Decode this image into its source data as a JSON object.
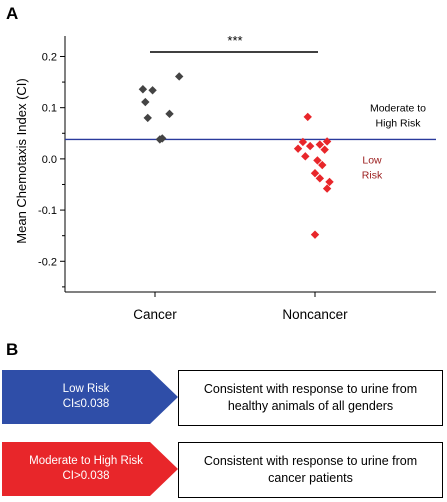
{
  "panel_a": {
    "letter": "A"
  },
  "panel_b": {
    "letter": "B",
    "rows": [
      {
        "arrow_line1": "Low Risk",
        "arrow_line2": "CI≤0.038",
        "arrow_color": "#2f4ea8",
        "desc_line1": "Consistent with response to urine from",
        "desc_line2": "healthy animals of all genders"
      },
      {
        "arrow_line1": "Moderate to High Risk",
        "arrow_line2": "CI>0.038",
        "arrow_color": "#e8262a",
        "desc_line1": "Consistent with response to urine from",
        "desc_line2": "cancer patients"
      }
    ]
  },
  "chart_data": {
    "type": "scatter",
    "ylabel": "Mean Chemotaxis Index (CI)",
    "xlabel": "",
    "categories": [
      "Cancer",
      "Noncancer"
    ],
    "ylim": [
      -0.26,
      0.24
    ],
    "yticks": [
      -0.2,
      -0.1,
      0.0,
      0.1,
      0.2
    ],
    "ytick_labels": [
      "-0.2",
      "-0.1",
      "0.0",
      "0.1",
      "0.2"
    ],
    "series": [
      {
        "category": "Cancer",
        "color": "#444444",
        "points": [
          {
            "x": -0.05,
            "y": 0.136
          },
          {
            "x": -0.04,
            "y": 0.111
          },
          {
            "x": -0.01,
            "y": 0.134
          },
          {
            "x": -0.03,
            "y": 0.08
          },
          {
            "x": 0.02,
            "y": 0.038
          },
          {
            "x": 0.03,
            "y": 0.04
          },
          {
            "x": 0.06,
            "y": 0.088
          },
          {
            "x": 0.1,
            "y": 0.161
          }
        ]
      },
      {
        "category": "Noncancer",
        "color": "#e8262a",
        "points": [
          {
            "x": -0.03,
            "y": 0.082
          },
          {
            "x": -0.07,
            "y": 0.02
          },
          {
            "x": -0.05,
            "y": 0.033
          },
          {
            "x": -0.02,
            "y": 0.025
          },
          {
            "x": 0.02,
            "y": 0.028
          },
          {
            "x": 0.05,
            "y": 0.034
          },
          {
            "x": 0.04,
            "y": 0.018
          },
          {
            "x": -0.04,
            "y": 0.005
          },
          {
            "x": 0.01,
            "y": -0.003
          },
          {
            "x": 0.03,
            "y": -0.012
          },
          {
            "x": 0.0,
            "y": -0.028
          },
          {
            "x": 0.02,
            "y": -0.038
          },
          {
            "x": 0.06,
            "y": -0.045
          },
          {
            "x": 0.05,
            "y": -0.058
          },
          {
            "x": 0.0,
            "y": -0.148
          }
        ]
      }
    ],
    "threshold": {
      "value": 0.038,
      "color": "#2a3a9c",
      "upper_label_line1": "Moderate to",
      "upper_label_line2": "High Risk",
      "upper_label_color": "#000000",
      "lower_label_line1": "Low",
      "lower_label_line2": "Risk",
      "lower_label_color": "#9b1c1c"
    },
    "significance": {
      "label": "***"
    }
  }
}
